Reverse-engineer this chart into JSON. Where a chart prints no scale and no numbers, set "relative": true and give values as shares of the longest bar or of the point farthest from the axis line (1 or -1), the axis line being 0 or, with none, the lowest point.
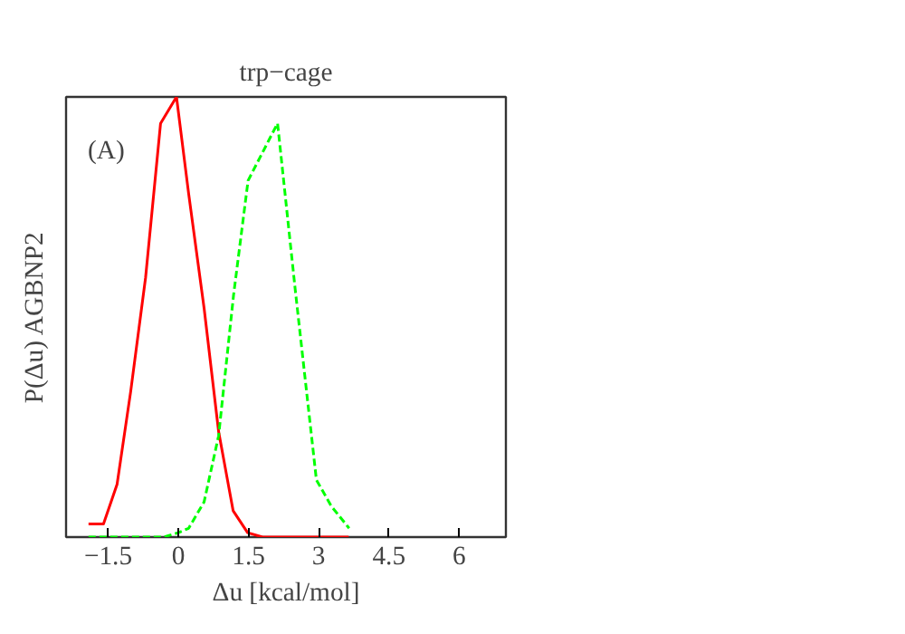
{
  "chart_data": {
    "type": "line",
    "title": "trp−cage",
    "xlabel": "Δu [kcal/mol]",
    "ylabel": "P(Δu) AGBNP2",
    "relative": true,
    "annotations": [
      "(A)"
    ],
    "xlim": [
      -2.4,
      7
    ],
    "xticks": [
      {
        "value": -1.5,
        "label": "−1.5"
      },
      0,
      1.5,
      3,
      4.5,
      6
    ],
    "grid": false,
    "series": [
      {
        "color": "#ff0000",
        "line_style": "solid",
        "x": [
          -1.92,
          -1.6,
          -1.31,
          -1.02,
          -0.7,
          -0.38,
          -0.04,
          0.22,
          0.55,
          0.86,
          1.17,
          1.48,
          1.8,
          3.64
        ],
        "values": [
          0.03,
          0.03,
          0.12,
          0.33,
          0.59,
          0.94,
          1.0,
          0.78,
          0.52,
          0.24,
          0.06,
          0.01,
          0.0,
          0.0
        ]
      },
      {
        "color": "#00ff00",
        "line_style": "dashed",
        "x": [
          -1.92,
          -0.32,
          0.0,
          0.22,
          0.55,
          0.86,
          1.18,
          1.49,
          2.12,
          2.5,
          2.95,
          3.27,
          3.65
        ],
        "values": [
          0.0,
          0.0,
          0.01,
          0.02,
          0.08,
          0.23,
          0.55,
          0.81,
          0.94,
          0.56,
          0.13,
          0.07,
          0.02
        ]
      }
    ]
  }
}
